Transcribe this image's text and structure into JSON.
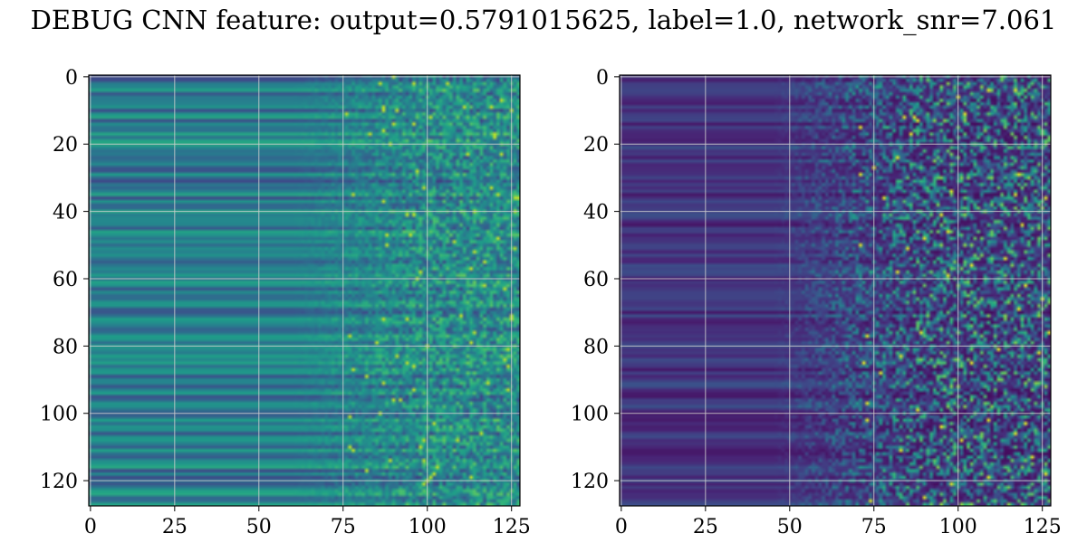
{
  "title": "DEBUG CNN feature: output=0.5791015625, label=1.0, network_snr=7.061",
  "chart_data": [
    {
      "type": "heatmap",
      "colormap": "viridis",
      "shape": [
        128,
        128
      ],
      "xlim": [
        0,
        127
      ],
      "ylim": [
        127,
        0
      ],
      "xticks": [
        0,
        25,
        50,
        75,
        100,
        125
      ],
      "yticks": [
        0,
        20,
        40,
        60,
        80,
        100,
        120
      ],
      "grid": true,
      "description_of_values": "smooth horizontal bands for columns 0-75, noisy speckle for columns 75-127"
    },
    {
      "type": "heatmap",
      "colormap": "viridis",
      "shape": [
        128,
        128
      ],
      "xlim": [
        0,
        127
      ],
      "ylim": [
        127,
        0
      ],
      "xticks": [
        0,
        25,
        50,
        75,
        100,
        125
      ],
      "yticks": [
        0,
        20,
        40,
        60,
        80,
        100,
        120
      ],
      "grid": true,
      "description_of_values": "mostly dark purple, bands on the left, sparse bright noise on the right"
    }
  ]
}
